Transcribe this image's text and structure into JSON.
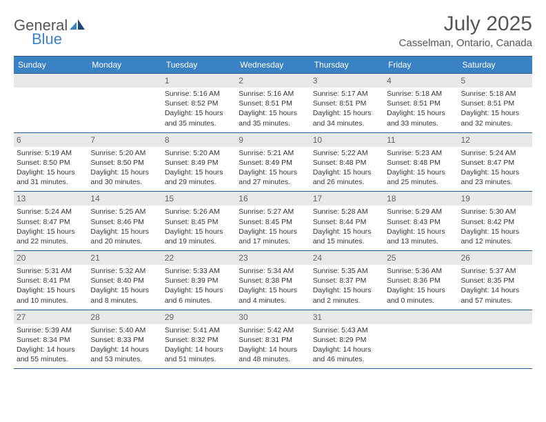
{
  "logo": {
    "text1": "General",
    "text2": "Blue"
  },
  "title": "July 2025",
  "location": "Casselman, Ontario, Canada",
  "colors": {
    "header_bg": "#3b82c4",
    "header_border": "#2a5a8a",
    "daynum_bg": "#e8e8e8",
    "text": "#333333"
  },
  "weekdays": [
    "Sunday",
    "Monday",
    "Tuesday",
    "Wednesday",
    "Thursday",
    "Friday",
    "Saturday"
  ],
  "weeks": [
    [
      null,
      null,
      {
        "n": "1",
        "sr": "5:16 AM",
        "ss": "8:52 PM",
        "dl": "15 hours and 35 minutes."
      },
      {
        "n": "2",
        "sr": "5:16 AM",
        "ss": "8:51 PM",
        "dl": "15 hours and 35 minutes."
      },
      {
        "n": "3",
        "sr": "5:17 AM",
        "ss": "8:51 PM",
        "dl": "15 hours and 34 minutes."
      },
      {
        "n": "4",
        "sr": "5:18 AM",
        "ss": "8:51 PM",
        "dl": "15 hours and 33 minutes."
      },
      {
        "n": "5",
        "sr": "5:18 AM",
        "ss": "8:51 PM",
        "dl": "15 hours and 32 minutes."
      }
    ],
    [
      {
        "n": "6",
        "sr": "5:19 AM",
        "ss": "8:50 PM",
        "dl": "15 hours and 31 minutes."
      },
      {
        "n": "7",
        "sr": "5:20 AM",
        "ss": "8:50 PM",
        "dl": "15 hours and 30 minutes."
      },
      {
        "n": "8",
        "sr": "5:20 AM",
        "ss": "8:49 PM",
        "dl": "15 hours and 29 minutes."
      },
      {
        "n": "9",
        "sr": "5:21 AM",
        "ss": "8:49 PM",
        "dl": "15 hours and 27 minutes."
      },
      {
        "n": "10",
        "sr": "5:22 AM",
        "ss": "8:48 PM",
        "dl": "15 hours and 26 minutes."
      },
      {
        "n": "11",
        "sr": "5:23 AM",
        "ss": "8:48 PM",
        "dl": "15 hours and 25 minutes."
      },
      {
        "n": "12",
        "sr": "5:24 AM",
        "ss": "8:47 PM",
        "dl": "15 hours and 23 minutes."
      }
    ],
    [
      {
        "n": "13",
        "sr": "5:24 AM",
        "ss": "8:47 PM",
        "dl": "15 hours and 22 minutes."
      },
      {
        "n": "14",
        "sr": "5:25 AM",
        "ss": "8:46 PM",
        "dl": "15 hours and 20 minutes."
      },
      {
        "n": "15",
        "sr": "5:26 AM",
        "ss": "8:45 PM",
        "dl": "15 hours and 19 minutes."
      },
      {
        "n": "16",
        "sr": "5:27 AM",
        "ss": "8:45 PM",
        "dl": "15 hours and 17 minutes."
      },
      {
        "n": "17",
        "sr": "5:28 AM",
        "ss": "8:44 PM",
        "dl": "15 hours and 15 minutes."
      },
      {
        "n": "18",
        "sr": "5:29 AM",
        "ss": "8:43 PM",
        "dl": "15 hours and 13 minutes."
      },
      {
        "n": "19",
        "sr": "5:30 AM",
        "ss": "8:42 PM",
        "dl": "15 hours and 12 minutes."
      }
    ],
    [
      {
        "n": "20",
        "sr": "5:31 AM",
        "ss": "8:41 PM",
        "dl": "15 hours and 10 minutes."
      },
      {
        "n": "21",
        "sr": "5:32 AM",
        "ss": "8:40 PM",
        "dl": "15 hours and 8 minutes."
      },
      {
        "n": "22",
        "sr": "5:33 AM",
        "ss": "8:39 PM",
        "dl": "15 hours and 6 minutes."
      },
      {
        "n": "23",
        "sr": "5:34 AM",
        "ss": "8:38 PM",
        "dl": "15 hours and 4 minutes."
      },
      {
        "n": "24",
        "sr": "5:35 AM",
        "ss": "8:37 PM",
        "dl": "15 hours and 2 minutes."
      },
      {
        "n": "25",
        "sr": "5:36 AM",
        "ss": "8:36 PM",
        "dl": "15 hours and 0 minutes."
      },
      {
        "n": "26",
        "sr": "5:37 AM",
        "ss": "8:35 PM",
        "dl": "14 hours and 57 minutes."
      }
    ],
    [
      {
        "n": "27",
        "sr": "5:39 AM",
        "ss": "8:34 PM",
        "dl": "14 hours and 55 minutes."
      },
      {
        "n": "28",
        "sr": "5:40 AM",
        "ss": "8:33 PM",
        "dl": "14 hours and 53 minutes."
      },
      {
        "n": "29",
        "sr": "5:41 AM",
        "ss": "8:32 PM",
        "dl": "14 hours and 51 minutes."
      },
      {
        "n": "30",
        "sr": "5:42 AM",
        "ss": "8:31 PM",
        "dl": "14 hours and 48 minutes."
      },
      {
        "n": "31",
        "sr": "5:43 AM",
        "ss": "8:29 PM",
        "dl": "14 hours and 46 minutes."
      },
      null,
      null
    ]
  ],
  "labels": {
    "sunrise": "Sunrise:",
    "sunset": "Sunset:",
    "daylight": "Daylight:"
  }
}
